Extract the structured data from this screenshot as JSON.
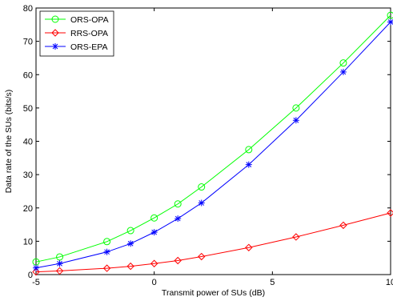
{
  "chart_data": {
    "type": "line",
    "xlabel": "Transmit power of SUs (dB)",
    "ylabel": "Data rate of the SUs (bits/s)",
    "xlim": [
      -5,
      10
    ],
    "ylim": [
      0,
      80
    ],
    "xticks": [
      -5,
      0,
      5,
      10
    ],
    "yticks": [
      0,
      10,
      20,
      30,
      40,
      50,
      60,
      70,
      80
    ],
    "x_tick_labels": [
      "-5",
      "0",
      "5",
      "10"
    ],
    "y_tick_labels": [
      "0",
      "10",
      "20",
      "30",
      "40",
      "50",
      "60",
      "70",
      "80"
    ],
    "grid": false,
    "legend_position": "top-left",
    "x": [
      -5,
      -4,
      -2,
      -1,
      0,
      1,
      2,
      4,
      6,
      8,
      10
    ],
    "series": [
      {
        "name": "ORS-OPA",
        "color": "#00ff00",
        "marker": "circle",
        "values": [
          3.8,
          5.3,
          9.9,
          13.2,
          17.0,
          21.2,
          26.3,
          37.5,
          50.0,
          63.5,
          77.8
        ]
      },
      {
        "name": "RRS-OPA",
        "color": "#ff0000",
        "marker": "diamond",
        "values": [
          0.8,
          1.1,
          1.9,
          2.5,
          3.3,
          4.2,
          5.4,
          8.1,
          11.3,
          14.8,
          18.5
        ]
      },
      {
        "name": "ORS-EPA",
        "color": "#0000ff",
        "marker": "star",
        "values": [
          2.0,
          3.3,
          6.8,
          9.3,
          12.7,
          16.8,
          21.5,
          33.0,
          46.3,
          60.8,
          75.8
        ]
      }
    ]
  }
}
